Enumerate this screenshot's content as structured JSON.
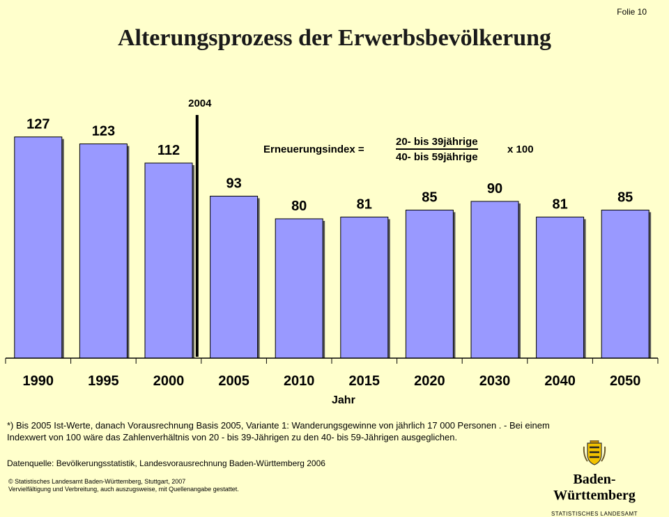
{
  "slide": {
    "number": "Folie 10",
    "title": "Alterungsprozess der Erwerbsbevölkerung"
  },
  "formula": {
    "lhs": "Erneuerungsindex =",
    "numerator": "20- bis 39jährige",
    "denominator": "40- bis 59jährige",
    "multiplier": "x 100"
  },
  "chart_data": {
    "type": "bar",
    "categories": [
      "1990",
      "1995",
      "2000",
      "2005",
      "2010",
      "2015",
      "2020",
      "2030",
      "2040",
      "2050"
    ],
    "values": [
      127,
      123,
      112,
      93,
      80,
      81,
      85,
      90,
      81,
      85
    ],
    "xlabel": "Jahr",
    "ylabel": "",
    "ylim": [
      0,
      130
    ],
    "grid": false,
    "bar_color": "#9999ff",
    "marker": {
      "label": "2004",
      "between": [
        "2000",
        "2005"
      ]
    }
  },
  "footnote": "*) Bis 2005 Ist-Werte, danach Vorausrechnung Basis 2005, Variante 1: Wanderungsgewinne von jährlich 17 000 Personen . - Bei einem Indexwert von 100 wäre das Zahlenverhältnis von 20 - bis 39-Jährigen zu den 40- bis 59-Jährigen ausgeglichen.",
  "source": "Datenquelle: Bevölkerungsstatistik, Landesvorausrechnung Baden-Württemberg 2006",
  "copyright": {
    "line1": "© Statistisches Landesamt Baden-Württemberg, Stuttgart, 2007",
    "line2": "Vervielfältigung und Verbreitung, auch auszugsweise, mit Quellenangabe gestattet."
  },
  "logo": {
    "wordmark": "Baden-Württemberg",
    "subtitle": "STATISTISCHES LANDESAMT",
    "icon": "coat-of-arms-icon"
  }
}
